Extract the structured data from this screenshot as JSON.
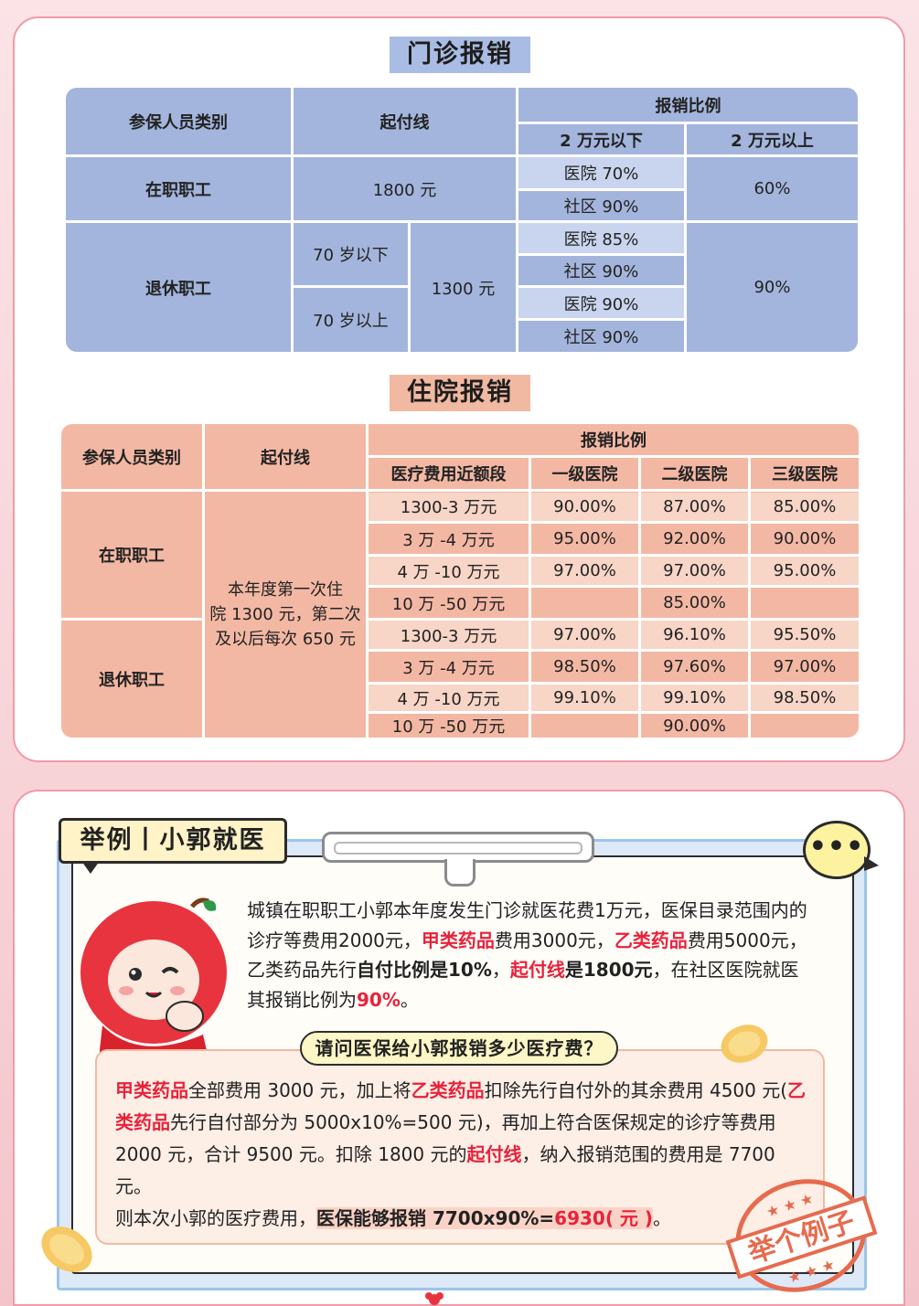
{
  "outpatient": {
    "title": "门诊报销",
    "headers": {
      "category": "参保人员类别",
      "deductible": "起付线",
      "ratio": "报销比例",
      "below": "2 万元以下",
      "above": "2 万元以上"
    },
    "employed": {
      "label": "在职职工",
      "deductible": "1800 元",
      "hospital": "医院 70%",
      "community": "社区 90%",
      "above": "60%"
    },
    "retired": {
      "label": "退休职工",
      "under70": "70 岁以下",
      "over70": "70 岁以上",
      "deductible": "1300 元",
      "rows": [
        "医院 85%",
        "社区 90%",
        "医院 90%",
        "社区 90%"
      ],
      "above": "90%"
    }
  },
  "inpatient": {
    "title": "住院报销",
    "headers": {
      "category": "参保人员类别",
      "deductible": "起付线",
      "ratio": "报销比例",
      "range": "医疗费用近额段",
      "level1": "一级医院",
      "level2": "二级医院",
      "level3": "三级医院"
    },
    "deductible_text": [
      "本年度第一次住",
      "院 1300 元，第二次",
      "及以后每次 650 元"
    ],
    "employed": {
      "label": "在职职工",
      "rows": [
        [
          "1300-3 万元",
          "90.00%",
          "87.00%",
          "85.00%"
        ],
        [
          "3 万 -4 万元",
          "95.00%",
          "92.00%",
          "90.00%"
        ],
        [
          "4 万 -10 万元",
          "97.00%",
          "97.00%",
          "95.00%"
        ],
        [
          "10 万 -50 万元",
          "",
          "85.00%",
          ""
        ]
      ]
    },
    "retired": {
      "label": "退休职工",
      "rows": [
        [
          "1300-3 万元",
          "97.00%",
          "96.10%",
          "95.50%"
        ],
        [
          "3 万 -4 万元",
          "98.50%",
          "97.60%",
          "97.00%"
        ],
        [
          "4 万 -10 万元",
          "99.10%",
          "99.10%",
          "98.50%"
        ],
        [
          "10 万 -50 万元",
          "",
          "90.00%",
          ""
        ]
      ]
    }
  },
  "example": {
    "tag": "举例丨小郭就医",
    "bubble": "•••",
    "para": {
      "p1": "城镇在职职工小郭本年度发生门诊就医花费1万元，医保目录范围内的诊疗等费用2000元，",
      "r1": "甲类药品",
      "p2": "费用3000元，",
      "r2": "乙类药品",
      "p3": "费用5000元，乙类药品先行",
      "b1": "自付比例是10%",
      "p4": "，",
      "r3": "起付线",
      "b2": "是1800元",
      "p5": "，在社区医院就医其报销比例为",
      "r4": "90%",
      "p6": "。"
    },
    "question": "请问医保给小郭报销多少医疗费？",
    "answer": {
      "r1": "甲类药品",
      "a1": "全部费用 3000 元，加上将",
      "r2": "乙类药品",
      "a2": "扣除先行自付外的其余费用 4500 元(",
      "r3": "乙类药品",
      "a3": "先行自付部分为 5000x10%=500 元)，再加上符合医保规定的诊疗等费用 2000 元，合计 9500 元。扣除 1800 元的",
      "r4": "起付线",
      "a4": "，纳入报销范围的费用是 7700 元。",
      "a5": "则本次小郭的医疗费用，",
      "a6": "医保能够报销 7700x90%=",
      "r5": "6930( 元 )",
      "a7": "。"
    },
    "stamp": "举个例子"
  }
}
